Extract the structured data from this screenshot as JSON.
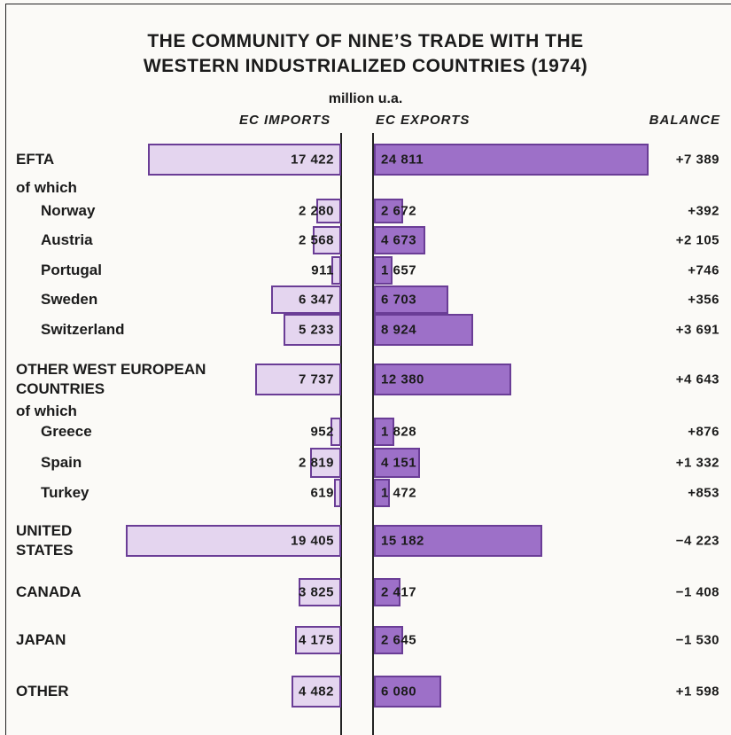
{
  "chart_data": {
    "type": "bar",
    "title": "THE COMMUNITY OF NINE’S TRADE WITH THE\nWESTERN INDUSTRIALIZED COUNTRIES (1974)",
    "subtitle": "million u.a.",
    "annotations": [
      "of which",
      "of which"
    ],
    "categories": [
      "EFTA",
      "Norway",
      "Austria",
      "Portugal",
      "Sweden",
      "Switzerland",
      "OTHER WEST EUROPEAN\nCOUNTRIES",
      "Greece",
      "Spain",
      "Turkey",
      "UNITED\nSTATES",
      "CANADA",
      "JAPAN",
      "OTHER"
    ],
    "xlim": [
      0,
      25000
    ],
    "series": [
      {
        "name": "EC IMPORTS",
        "color": "#e4d5ef",
        "values": [
          17422,
          2280,
          2568,
          911,
          6347,
          5233,
          7737,
          952,
          2819,
          619,
          19405,
          3825,
          4175,
          4482
        ],
        "value_labels": [
          "17 422",
          "2 280",
          "2 568",
          "911",
          "6 347",
          "5 233",
          "7 737",
          "952",
          "2 819",
          "619",
          "19 405",
          "3 825",
          "4 175",
          "4 482"
        ]
      },
      {
        "name": "EC EXPORTS",
        "color": "#9d70c8",
        "values": [
          24811,
          2672,
          4673,
          1657,
          6703,
          8924,
          12380,
          1828,
          4151,
          1472,
          15182,
          2417,
          2645,
          6080
        ],
        "value_labels": [
          "24 811",
          "2 672",
          "4 673",
          "1 657",
          "6 703",
          "8 924",
          "12 380",
          "1 828",
          "4 151",
          "1 472",
          "15 182",
          "2 417",
          "2 645",
          "6 080"
        ]
      },
      {
        "name": "BALANCE",
        "values": [
          7389,
          392,
          2105,
          746,
          356,
          3691,
          4643,
          876,
          1332,
          853,
          -4223,
          -1408,
          -1530,
          1598
        ],
        "value_labels": [
          "+7 389",
          "+392",
          "+2 105",
          "+746",
          "+356",
          "+3 691",
          "+4 643",
          "+876",
          "+1 332",
          "+853",
          "−4 223",
          "−1 408",
          "−1 530",
          "+1 598"
        ]
      }
    ]
  }
}
